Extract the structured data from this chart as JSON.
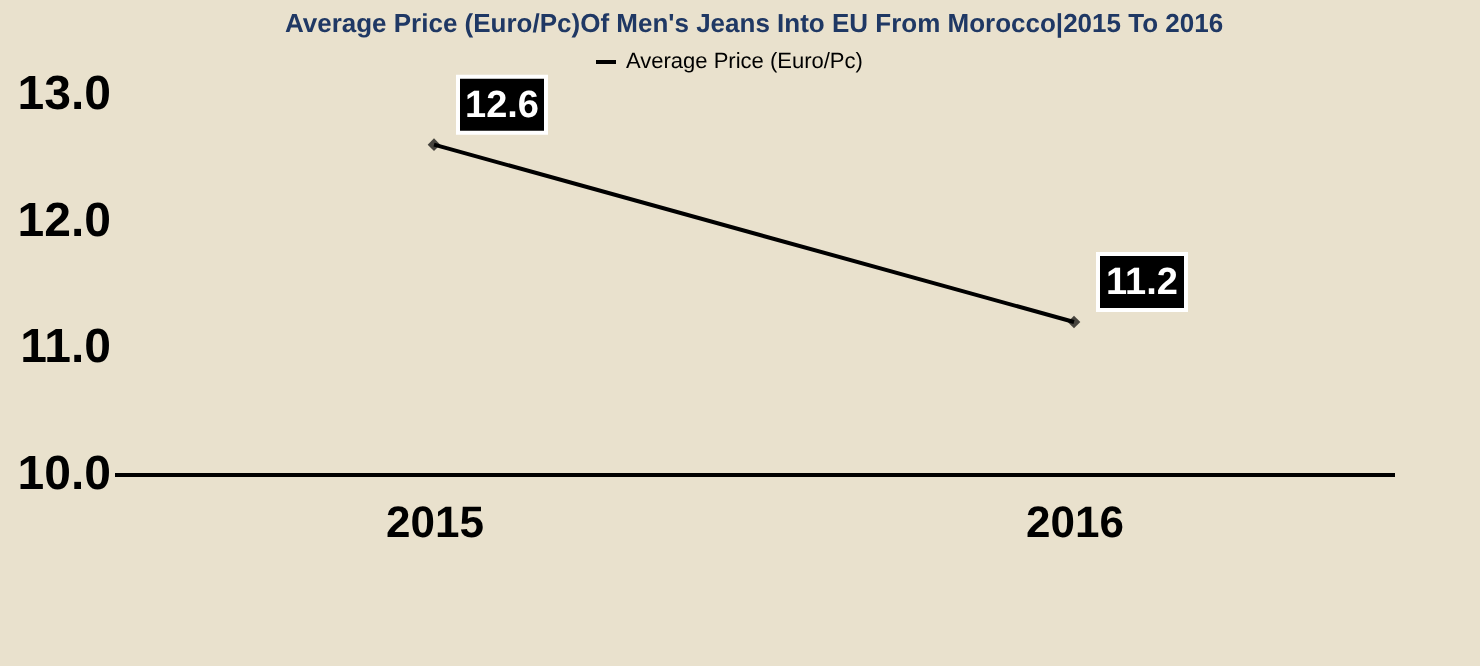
{
  "chart_data": {
    "type": "line",
    "title": "Average Price (Euro/Pc)Of Men's Jeans Into EU From Morocco|2015 To 2016",
    "categories": [
      "2015",
      "2016"
    ],
    "series": [
      {
        "name": "Average Price (Euro/Pc)",
        "color": "#000000",
        "values": [
          12.6,
          11.2
        ]
      }
    ],
    "ylim": [
      10,
      13
    ],
    "yticks": [
      {
        "value": 10,
        "label": "10.0"
      },
      {
        "value": 11,
        "label": "11.0"
      },
      {
        "value": 12,
        "label": "12.0"
      },
      {
        "value": 13,
        "label": "13.0"
      }
    ],
    "grid": false,
    "legend": "top",
    "marker": "diamond",
    "line_style": "solid",
    "data_labels": true
  }
}
